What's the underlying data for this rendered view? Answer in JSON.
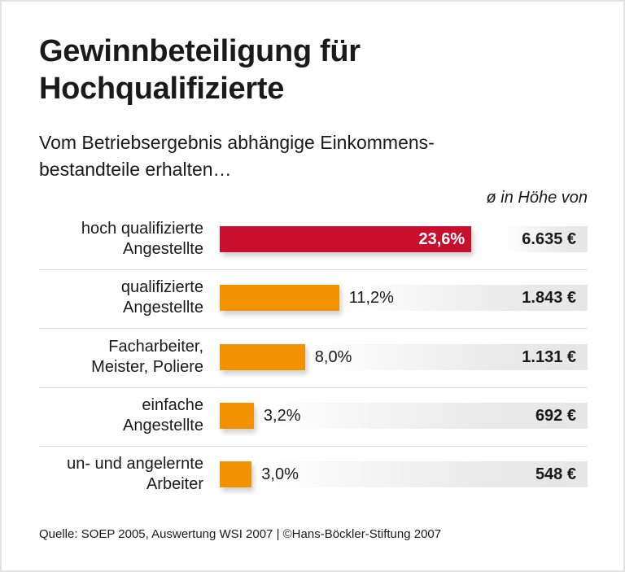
{
  "title": "Gewinnbeteiligung für Hochqualifizierte",
  "subtitle": "Vom Betriebsergebnis abhängige Einkommens-bestandteile erhalten…",
  "subtitle_lines": [
    "Vom Betriebsergebnis abhängige Einkommens-",
    "bestandteile erhalten…"
  ],
  "column_header": "ø in Höhe von",
  "source": "Quelle: SOEP 2005, Auswertung WSI 2007 | ©Hans-Böckler-Stiftung 2007",
  "colors": {
    "highlight": "#c8102e",
    "bar": "#f39200"
  },
  "chart_data": {
    "type": "bar",
    "orientation": "horizontal",
    "categories": [
      [
        "hoch qualifizierte",
        "Angestellte"
      ],
      [
        "qualifizierte",
        "Angestellte"
      ],
      [
        "Facharbeiter,",
        "Meister, Poliere"
      ],
      [
        "einfache",
        "Angestellte"
      ],
      [
        "un- und angelernte",
        "Arbeiter"
      ]
    ],
    "values": [
      23.6,
      11.2,
      8.0,
      3.2,
      3.0
    ],
    "value_labels": [
      "23,6%",
      "11,2%",
      "8,0%",
      "3,2%",
      "3,0%"
    ],
    "unit": "%",
    "average_amounts": [
      "6.635 €",
      "1.843 €",
      "1.131 €",
      "692 €",
      "548 €"
    ],
    "highlighted_index": 0
  }
}
